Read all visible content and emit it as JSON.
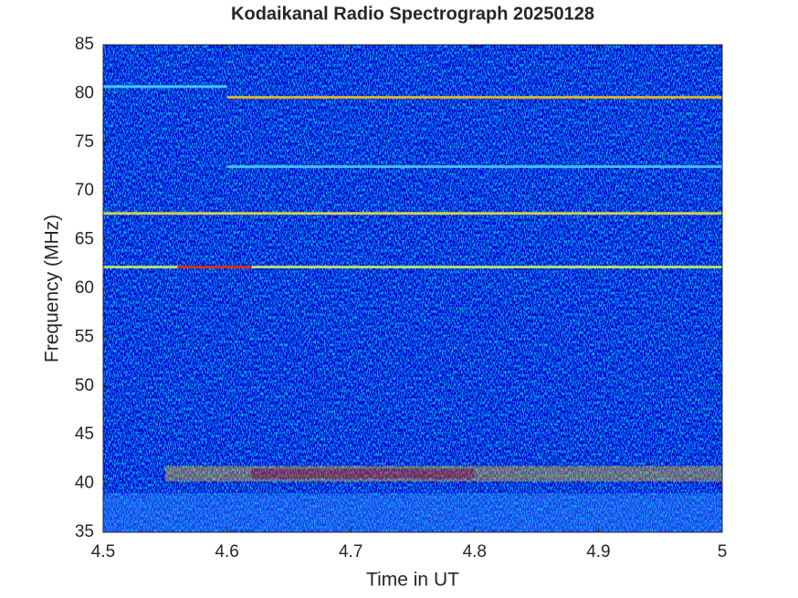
{
  "chart_data": {
    "type": "spectrogram",
    "title": "Kodaikanal Radio Spectrograph  20250128",
    "xlabel": "Time in UT",
    "ylabel": "Frequency (MHz)",
    "xlim": [
      4.5,
      5
    ],
    "xticks": [
      4.5,
      4.6,
      4.7,
      4.8,
      4.9,
      5
    ],
    "ylim": [
      35,
      85
    ],
    "yticks": [
      35,
      40,
      45,
      50,
      55,
      60,
      65,
      70,
      75,
      80,
      85
    ],
    "background": "#0b22b0",
    "features": [
      {
        "x": [
          4.5,
          5
        ],
        "ylim": [
          35,
          39
        ],
        "color": "#3a8cff"
      },
      {
        "x": [
          4.55,
          5
        ],
        "ylim": [
          40.2,
          41.8
        ],
        "color": "#e8b020"
      },
      {
        "x": [
          4.62,
          4.8
        ],
        "ylim": [
          40.5,
          41.5
        ],
        "color": "#c81e10"
      },
      {
        "x": [
          4.5,
          4.6
        ],
        "y": 80.7,
        "color": "#48d8ff"
      },
      {
        "x": [
          4.6,
          5
        ],
        "y": 79.6,
        "color": "#f0c020"
      },
      {
        "x": [
          4.6,
          5
        ],
        "y": 72.5,
        "color": "#48c8ff"
      },
      {
        "x": [
          4.5,
          5
        ],
        "y": 67.7,
        "color": "#e8e040"
      },
      {
        "x": [
          4.5,
          5
        ],
        "y": 62.2,
        "color": "#c0f060"
      },
      {
        "x": [
          4.56,
          4.62
        ],
        "y": 62.2,
        "color": "#d02010"
      }
    ]
  }
}
